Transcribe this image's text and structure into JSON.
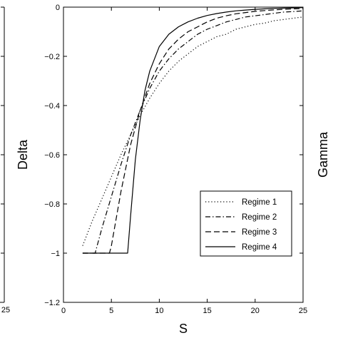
{
  "chart_data": {
    "type": "line",
    "xlabel": "S",
    "ylabel": "Delta",
    "right_ylabel": "Gamma",
    "xlim": [
      0,
      25
    ],
    "ylim": [
      -1.2,
      0
    ],
    "x_ticks": [
      0,
      5,
      10,
      15,
      20,
      25
    ],
    "y_ticks": [
      0,
      -0.2,
      -0.4,
      -0.6,
      -0.8,
      -1,
      -1.2
    ],
    "x_tick_labels": [
      "0",
      "5",
      "10",
      "15",
      "20",
      "25"
    ],
    "y_tick_labels": [
      "0",
      "−0.2",
      "−0.4",
      "−0.6",
      "−0.8",
      "−1",
      "−1.2"
    ],
    "left_panel_last_tick": "25",
    "legend_position": "lower-right",
    "grid": false,
    "series": [
      {
        "name": "Regime 1",
        "style": "dotted",
        "x": [
          2,
          3,
          4,
          5,
          6,
          7,
          8,
          9,
          10,
          11,
          12,
          13,
          14,
          15,
          16,
          17,
          18,
          19,
          20,
          21,
          22,
          23,
          24,
          25
        ],
        "y": [
          -0.97,
          -0.87,
          -0.78,
          -0.69,
          -0.6,
          -0.52,
          -0.44,
          -0.37,
          -0.31,
          -0.26,
          -0.22,
          -0.19,
          -0.16,
          -0.14,
          -0.12,
          -0.11,
          -0.09,
          -0.08,
          -0.07,
          -0.065,
          -0.055,
          -0.05,
          -0.045,
          -0.04
        ]
      },
      {
        "name": "Regime 2",
        "style": "dashdot",
        "x": [
          2,
          3.3,
          4,
          5,
          6,
          7,
          8,
          9,
          10,
          11,
          12,
          13,
          14,
          15,
          16,
          17,
          18,
          19,
          20,
          21,
          22,
          23,
          24,
          25
        ],
        "y": [
          -1,
          -1,
          -0.9,
          -0.77,
          -0.64,
          -0.52,
          -0.42,
          -0.33,
          -0.26,
          -0.21,
          -0.17,
          -0.14,
          -0.11,
          -0.09,
          -0.075,
          -0.06,
          -0.05,
          -0.04,
          -0.035,
          -0.03,
          -0.025,
          -0.02,
          -0.018,
          -0.015
        ]
      },
      {
        "name": "Regime 3",
        "style": "dashed",
        "x": [
          2,
          4.8,
          5,
          6,
          7,
          8,
          9,
          10,
          11,
          12,
          13,
          14,
          15,
          16,
          17,
          18,
          19,
          20,
          21,
          22,
          23,
          24,
          25
        ],
        "y": [
          -1,
          -1,
          -0.97,
          -0.75,
          -0.56,
          -0.42,
          -0.31,
          -0.23,
          -0.17,
          -0.13,
          -0.1,
          -0.08,
          -0.06,
          -0.045,
          -0.035,
          -0.027,
          -0.022,
          -0.017,
          -0.014,
          -0.011,
          -0.009,
          -0.007,
          -0.006
        ]
      },
      {
        "name": "Regime 4",
        "style": "solid",
        "x": [
          2,
          6.7,
          7,
          7.5,
          8,
          8.5,
          9,
          10,
          11,
          12,
          13,
          14,
          15,
          16,
          17,
          18,
          19,
          20,
          21,
          22,
          23,
          24,
          25
        ],
        "y": [
          -1,
          -1,
          -0.85,
          -0.62,
          -0.46,
          -0.34,
          -0.26,
          -0.16,
          -0.11,
          -0.08,
          -0.06,
          -0.045,
          -0.034,
          -0.026,
          -0.02,
          -0.015,
          -0.012,
          -0.009,
          -0.007,
          -0.005,
          -0.004,
          -0.003,
          -0.002
        ]
      }
    ]
  }
}
